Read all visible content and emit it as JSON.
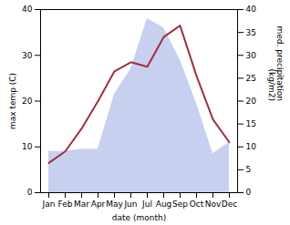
{
  "chart_data": {
    "type": "line",
    "xlabel": "date (month)",
    "ylabel": "max temp (C)",
    "y2label": "med. precipitation\n(kg/m2)",
    "categories": [
      "Jan",
      "Feb",
      "Mar",
      "Apr",
      "May",
      "Jun",
      "Jul",
      "Aug",
      "Sep",
      "Oct",
      "Nov",
      "Dec"
    ],
    "ylim": [
      0,
      40
    ],
    "yticks": [
      0,
      10,
      20,
      30,
      40
    ],
    "y2lim": [
      0,
      40
    ],
    "y2ticks": [
      0,
      5,
      10,
      15,
      20,
      25,
      30,
      35,
      40
    ],
    "series": [
      {
        "type": "area",
        "axis": "y2",
        "color": "#c8d0f0",
        "values": [
          9.0,
          9.0,
          9.5,
          9.5,
          21.5,
          27.0,
          38.0,
          36.0,
          29.0,
          19.5,
          8.5,
          11.0
        ]
      },
      {
        "type": "line",
        "color": "#a03040",
        "values": [
          6.5,
          9.0,
          14.0,
          20.0,
          26.5,
          28.5,
          27.5,
          34.0,
          36.5,
          25.5,
          16.0,
          11.0
        ]
      }
    ]
  }
}
